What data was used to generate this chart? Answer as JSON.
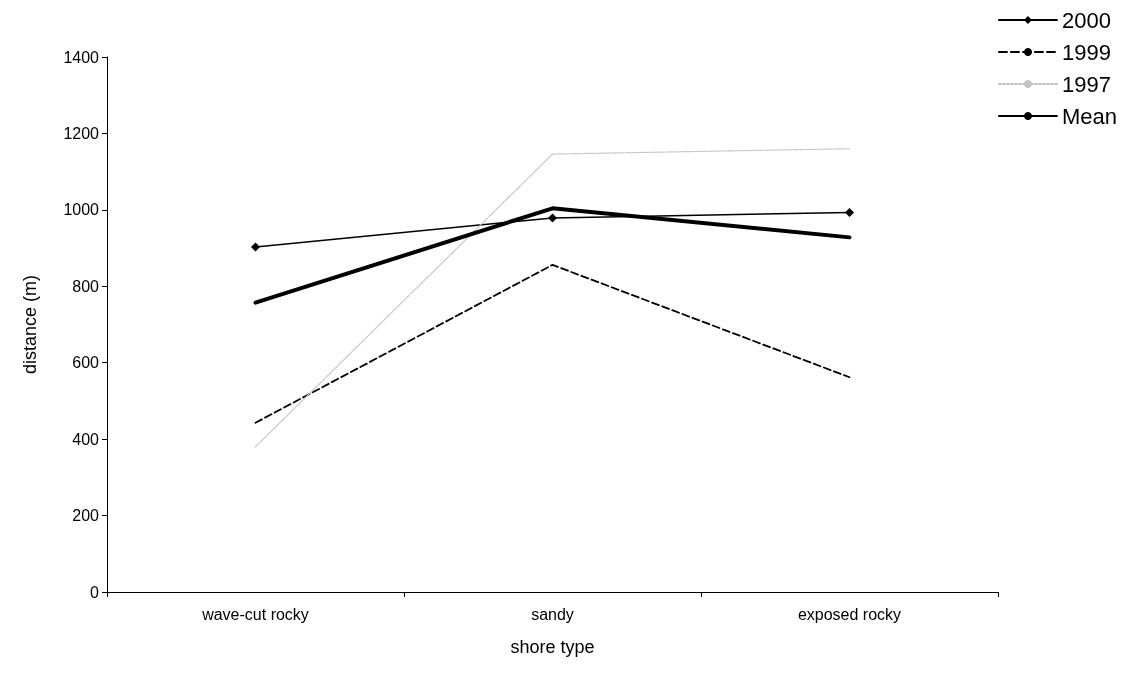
{
  "chart_data": {
    "type": "line",
    "xlabel": "shore type",
    "ylabel": "distance (m)",
    "categories": [
      "wave-cut rocky",
      "sandy",
      "exposed rocky"
    ],
    "series": [
      {
        "name": "2000",
        "color": "#000000",
        "values": [
          903,
          979,
          993
        ],
        "marker": "diamond",
        "line_style": "solid"
      },
      {
        "name": "1999",
        "color": "#000000",
        "values": [
          443,
          856,
          562
        ],
        "marker": "none",
        "line_style": "dashed"
      },
      {
        "name": "1997",
        "color": "#c4c4c4",
        "values": [
          380,
          1146,
          1160
        ],
        "marker": "none",
        "line_style": "dotted"
      },
      {
        "name": "Mean",
        "color": "#000000",
        "values": [
          757,
          1004,
          928
        ],
        "marker": "none",
        "line_style": "solid"
      }
    ],
    "ylim": [
      0,
      1400
    ],
    "yticks": [
      0,
      200,
      400,
      600,
      800,
      1000,
      1200,
      1400
    ],
    "grid": false,
    "legend": "top right"
  }
}
